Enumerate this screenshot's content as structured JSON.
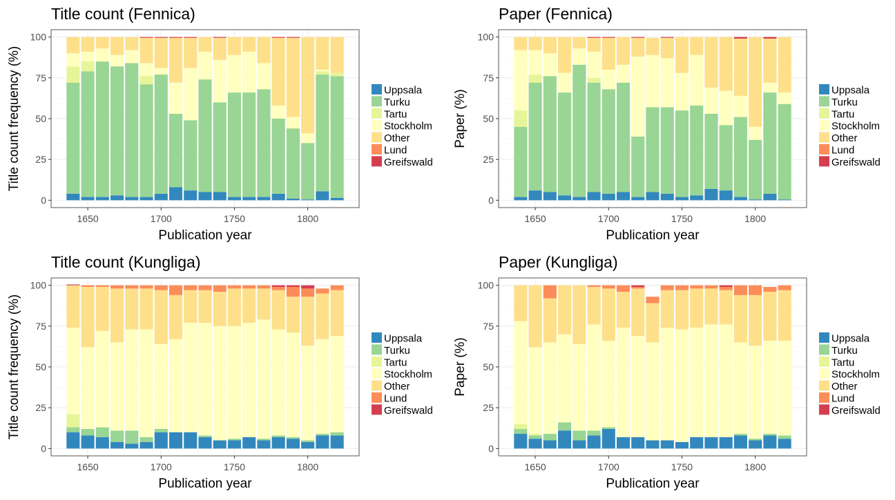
{
  "chart_data": [
    {
      "type": "bar",
      "stacked": true,
      "title": "Title count (Fennica)",
      "xlabel": "Publication year",
      "ylabel": "Title count frequency (%)",
      "ylim": [
        0,
        100
      ],
      "yticks": [
        0,
        25,
        50,
        75,
        100
      ],
      "xlim": [
        1630,
        1830
      ],
      "xticks": [
        1650,
        1700,
        1750,
        1800
      ],
      "grid": true,
      "legend_position": "right",
      "x": [
        1640,
        1650,
        1660,
        1670,
        1680,
        1690,
        1700,
        1710,
        1720,
        1730,
        1740,
        1750,
        1760,
        1770,
        1780,
        1790,
        1800,
        1810,
        1820
      ],
      "series": [
        {
          "name": "Uppsala",
          "color": "#3288BD",
          "values": [
            4,
            2,
            2,
            3,
            2,
            2,
            4,
            8,
            6,
            5,
            5,
            2,
            2,
            2,
            4,
            1,
            0.5,
            5.5,
            1.5
          ]
        },
        {
          "name": "Turku",
          "color": "#99D594",
          "values": [
            68,
            77,
            83,
            79,
            82,
            69,
            73,
            45,
            43,
            69,
            55,
            64,
            64,
            66,
            46,
            43,
            34.5,
            71.5,
            74.5
          ]
        },
        {
          "name": "Tartu",
          "color": "#E6F598",
          "values": [
            10,
            6,
            0,
            0,
            0,
            5,
            0,
            0,
            0,
            0,
            0,
            0,
            0,
            0,
            0,
            0,
            0,
            2,
            2
          ]
        },
        {
          "name": "Stockholm",
          "color": "#FFFFBF",
          "values": [
            8,
            6,
            8,
            7,
            8,
            8,
            4,
            19,
            32,
            17,
            26,
            23,
            25,
            16,
            8,
            7,
            6,
            1,
            0
          ]
        },
        {
          "name": "Other",
          "color": "#FEE08B",
          "values": [
            10,
            9,
            7,
            11,
            8,
            15.5,
            18.5,
            27.5,
            18.5,
            9,
            13.5,
            11,
            9,
            16,
            41.5,
            48.5,
            59,
            20,
            22
          ]
        },
        {
          "name": "Lund",
          "color": "#FC8D59",
          "values": [
            0,
            0,
            0,
            0,
            0,
            0,
            0,
            0,
            0,
            0,
            0,
            0,
            0,
            0,
            0,
            0,
            0,
            0,
            0
          ]
        },
        {
          "name": "Greifswald",
          "color": "#D53E4F",
          "values": [
            0,
            0,
            0,
            0,
            0,
            0.5,
            0.5,
            0.5,
            0.5,
            0,
            0.5,
            0,
            0,
            0,
            0.5,
            0.5,
            0,
            0,
            0
          ]
        }
      ]
    },
    {
      "type": "bar",
      "stacked": true,
      "title": "Paper (Fennica)",
      "xlabel": "Publication year",
      "ylabel": "Paper (%)",
      "ylim": [
        0,
        100
      ],
      "yticks": [
        0,
        25,
        50,
        75,
        100
      ],
      "xlim": [
        1630,
        1830
      ],
      "xticks": [
        1650,
        1700,
        1750,
        1800
      ],
      "grid": true,
      "legend_position": "right",
      "x": [
        1640,
        1650,
        1660,
        1670,
        1680,
        1690,
        1700,
        1710,
        1720,
        1730,
        1740,
        1750,
        1760,
        1770,
        1780,
        1790,
        1800,
        1810,
        1820
      ],
      "series": [
        {
          "name": "Uppsala",
          "color": "#3288BD",
          "values": [
            2,
            6,
            5,
            3,
            2,
            5,
            4,
            5,
            2,
            5,
            4,
            2,
            3,
            7,
            6,
            2,
            0.5,
            4,
            0.5
          ]
        },
        {
          "name": "Turku",
          "color": "#99D594",
          "values": [
            43,
            66,
            71,
            63,
            81,
            67,
            64,
            67,
            37,
            52,
            53,
            53,
            55,
            46,
            40,
            49,
            36.5,
            62,
            58.5
          ]
        },
        {
          "name": "Tartu",
          "color": "#E6F598",
          "values": [
            10,
            5,
            0,
            0,
            0,
            3,
            0,
            0,
            0,
            0,
            0,
            0,
            0,
            0,
            0,
            0,
            0,
            0,
            0
          ]
        },
        {
          "name": "Stockholm",
          "color": "#FFFFBF",
          "values": [
            37,
            15,
            14,
            12,
            10,
            16,
            12,
            11,
            49,
            32,
            30,
            23,
            31,
            16,
            21,
            13,
            8,
            6,
            7
          ]
        },
        {
          "name": "Other",
          "color": "#FEE08B",
          "values": [
            8,
            8,
            10,
            22,
            7,
            8.5,
            19.5,
            17,
            11.5,
            10.5,
            12.5,
            22,
            11,
            31,
            33,
            35,
            55,
            27,
            34
          ]
        },
        {
          "name": "Lund",
          "color": "#FC8D59",
          "values": [
            0,
            0,
            0,
            0,
            0,
            0,
            0,
            0,
            0,
            0,
            0,
            0,
            0,
            0,
            0,
            0,
            0,
            0,
            0
          ]
        },
        {
          "name": "Greifswald",
          "color": "#D53E4F",
          "values": [
            0,
            0,
            0,
            0,
            0,
            0.5,
            0.5,
            0,
            0.5,
            0,
            0.5,
            0,
            0,
            0,
            0,
            1,
            0,
            1,
            0
          ]
        }
      ]
    },
    {
      "type": "bar",
      "stacked": true,
      "title": "Title count (Kungliga)",
      "xlabel": "Publication year",
      "ylabel": "Title count frequency (%)",
      "ylim": [
        0,
        100
      ],
      "yticks": [
        0,
        25,
        50,
        75,
        100
      ],
      "xlim": [
        1630,
        1830
      ],
      "xticks": [
        1650,
        1700,
        1750,
        1800
      ],
      "grid": true,
      "legend_position": "right",
      "x": [
        1640,
        1650,
        1660,
        1670,
        1680,
        1690,
        1700,
        1710,
        1720,
        1730,
        1740,
        1750,
        1760,
        1770,
        1780,
        1790,
        1800,
        1810,
        1820
      ],
      "series": [
        {
          "name": "Uppsala",
          "color": "#3288BD",
          "values": [
            10,
            8,
            7,
            4,
            3,
            4,
            10,
            10,
            10,
            7,
            5,
            5,
            7,
            5,
            7,
            6,
            4,
            8,
            8
          ]
        },
        {
          "name": "Turku",
          "color": "#99D594",
          "values": [
            3,
            4,
            6,
            7,
            8,
            3,
            2,
            0,
            0,
            1,
            0,
            1,
            0,
            1,
            1,
            1,
            1,
            1,
            2
          ]
        },
        {
          "name": "Tartu",
          "color": "#E6F598",
          "values": [
            8,
            0,
            0,
            0,
            0,
            0,
            0,
            0,
            0,
            0,
            0,
            0,
            0,
            0,
            0,
            0,
            0,
            0,
            0
          ]
        },
        {
          "name": "Stockholm",
          "color": "#FFFFBF",
          "values": [
            53,
            50,
            59,
            54,
            62,
            66,
            52,
            57,
            67,
            69,
            70,
            69,
            70,
            73,
            65,
            64,
            58,
            58,
            59
          ]
        },
        {
          "name": "Other",
          "color": "#FEE08B",
          "values": [
            26,
            37,
            27,
            33,
            25,
            25,
            33,
            27,
            20,
            20,
            21,
            23,
            21,
            19,
            24,
            22,
            30,
            28,
            28
          ]
        },
        {
          "name": "Lund",
          "color": "#FC8D59",
          "values": [
            0,
            1,
            1,
            2,
            2,
            2,
            3,
            6,
            3,
            3,
            4,
            2,
            2,
            2,
            2,
            6,
            5,
            3,
            3
          ]
        },
        {
          "name": "Greifswald",
          "color": "#D53E4F",
          "values": [
            0.5,
            0,
            0,
            0,
            0,
            0,
            0,
            0,
            0,
            0,
            0,
            0,
            0,
            0,
            1,
            1,
            2,
            0,
            0
          ]
        }
      ]
    },
    {
      "type": "bar",
      "stacked": true,
      "title": "Paper (Kungliga)",
      "xlabel": "Publication year",
      "ylabel": "Paper (%)",
      "ylim": [
        0,
        100
      ],
      "yticks": [
        0,
        25,
        50,
        75,
        100
      ],
      "xlim": [
        1630,
        1830
      ],
      "xticks": [
        1650,
        1700,
        1750,
        1800
      ],
      "grid": true,
      "legend_position": "right",
      "x": [
        1640,
        1650,
        1660,
        1670,
        1680,
        1690,
        1700,
        1710,
        1720,
        1730,
        1740,
        1750,
        1760,
        1770,
        1780,
        1790,
        1800,
        1810,
        1820
      ],
      "series": [
        {
          "name": "Uppsala",
          "color": "#3288BD",
          "values": [
            9,
            6,
            5,
            11,
            5,
            8,
            12,
            7,
            7,
            5,
            5,
            4,
            7,
            7,
            7,
            8,
            5,
            8,
            6
          ]
        },
        {
          "name": "Turku",
          "color": "#99D594",
          "values": [
            3,
            2,
            4,
            5,
            6,
            3,
            1,
            0,
            0,
            0,
            0,
            0,
            0,
            0,
            0,
            1,
            1,
            1,
            2
          ]
        },
        {
          "name": "Tartu",
          "color": "#E6F598",
          "values": [
            3,
            1,
            0,
            0,
            0,
            0,
            0,
            0,
            0,
            0,
            0,
            0,
            0,
            0,
            0,
            0,
            0,
            0,
            0
          ]
        },
        {
          "name": "Stockholm",
          "color": "#FFFFBF",
          "values": [
            63,
            53,
            56,
            54,
            53,
            65,
            53,
            67,
            62,
            60,
            69,
            69,
            67,
            69,
            69,
            56,
            57,
            57,
            58
          ]
        },
        {
          "name": "Other",
          "color": "#FEE08B",
          "values": [
            22,
            38,
            27,
            30,
            36,
            23,
            32,
            22,
            29,
            24,
            23,
            24,
            24,
            22,
            21,
            29,
            31,
            30,
            31
          ]
        },
        {
          "name": "Lund",
          "color": "#FC8D59",
          "values": [
            0,
            0,
            8,
            0,
            0,
            1,
            2,
            4,
            1,
            4,
            3,
            3,
            2,
            2,
            2,
            6,
            6,
            3,
            3
          ]
        },
        {
          "name": "Greifswald",
          "color": "#D53E4F",
          "values": [
            0,
            0,
            0,
            0,
            0,
            0,
            0,
            0,
            1,
            0,
            0,
            0,
            0,
            0,
            1,
            0,
            0,
            0,
            0
          ]
        }
      ]
    }
  ]
}
